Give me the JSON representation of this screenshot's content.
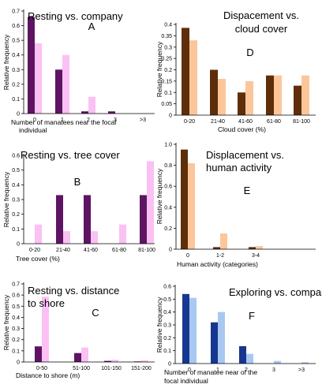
{
  "colors": {
    "purple_dark": "#5e1463",
    "purple_light": "#fbc0f4",
    "brown_dark": "#5e2e0a",
    "orange_light": "#fcc69a",
    "blue_dark": "#16378f",
    "blue_light": "#a8c8f2"
  },
  "chart_data": [
    {
      "type": "bar",
      "title": "Resting vs. company",
      "letter": "A",
      "xlabel": "Number of manatees near the focal individual",
      "ylabel": "Relative frequency",
      "categories": [
        "0",
        "1",
        "2",
        "3",
        ">3"
      ],
      "ylim": [
        0,
        0.7
      ],
      "yticks": [
        "0",
        "0.1",
        "0.2",
        "0.3",
        "0.4",
        "0.5",
        "0.6",
        "0.7"
      ],
      "series": [
        {
          "values": [
            0.66,
            0.3,
            0.015,
            0.015,
            0
          ]
        },
        {
          "values": [
            0.48,
            0.4,
            0.115,
            0,
            0
          ]
        }
      ]
    },
    {
      "type": "bar",
      "title": "Resting vs. tree cover",
      "letter": "B",
      "xlabel": "Tree cover (%)",
      "ylabel": "Relative frequency",
      "categories": [
        "0-20",
        "21-40",
        "41-60",
        "61-80",
        "81-100"
      ],
      "ylim": [
        0,
        0.6
      ],
      "yticks": [
        "0",
        "0.1",
        "0.2",
        "0.3",
        "0.4",
        "0.5",
        "0.6"
      ],
      "series": [
        {
          "values": [
            0,
            0.33,
            0.33,
            0,
            0.33
          ]
        },
        {
          "values": [
            0.13,
            0.085,
            0.085,
            0.13,
            0.56
          ]
        }
      ]
    },
    {
      "type": "bar",
      "title": "Resting vs. distance to shore",
      "letter": "C",
      "xlabel": "Distance to shore (m)",
      "ylabel": "Relative frequency",
      "categories": [
        "0-50",
        "51-100",
        "101-150",
        "151-200"
      ],
      "ylim": [
        0,
        0.7
      ],
      "yticks": [
        "0",
        "0.1",
        "0.2",
        "0.3",
        "0.4",
        "0.5",
        "0.6",
        "0.7"
      ],
      "series": [
        {
          "values": [
            0.14,
            0.08,
            0.01,
            0.005
          ]
        },
        {
          "values": [
            0.585,
            0.13,
            0.02,
            0.015
          ]
        }
      ]
    },
    {
      "type": "bar",
      "title": "Dispacement vs. cloud cover",
      "letter": "D",
      "xlabel": "Cloud cover (%)",
      "ylabel": "Relative frequency",
      "categories": [
        "0-20",
        "21-40",
        "41-60",
        "61-80",
        "81-100"
      ],
      "ylim": [
        0,
        0.4
      ],
      "yticks": [
        "0",
        "0.05",
        "0.1",
        "0.15",
        "0.2",
        "0.25",
        "0.3",
        "0.35",
        "0.4"
      ],
      "series": [
        {
          "values": [
            0.385,
            0.2,
            0.1,
            0.175,
            0.13
          ]
        },
        {
          "values": [
            0.33,
            0.16,
            0.15,
            0.175,
            0.175
          ]
        }
      ]
    },
    {
      "type": "bar",
      "title": "Displacement vs. human activity",
      "letter": "E",
      "xlabel": "Human activity (categories)",
      "ylabel": "Relative frequency",
      "categories": [
        "0",
        "1-2",
        "3-4"
      ],
      "ylim": [
        0,
        1.0
      ],
      "yticks": [
        "0",
        "0.2",
        "0.4",
        "0.6",
        "0.8",
        "1.0"
      ],
      "series": [
        {
          "values": [
            0.95,
            0.02,
            0.02
          ]
        },
        {
          "values": [
            0.82,
            0.15,
            0.03
          ]
        }
      ]
    },
    {
      "type": "bar",
      "title": "Exploring vs. company",
      "letter": "F",
      "xlabel": "Number of manatee near of the focal individual",
      "ylabel": "Relative frequency",
      "categories": [
        "0",
        "1",
        "2",
        "3",
        ">3"
      ],
      "ylim": [
        0,
        0.6
      ],
      "yticks": [
        "0",
        "0.1",
        "0.2",
        "0.3",
        "0.4",
        "0.5",
        "0.6"
      ],
      "series": [
        {
          "values": [
            0.54,
            0.32,
            0.135,
            0,
            0
          ]
        },
        {
          "values": [
            0.51,
            0.4,
            0.075,
            0.02,
            0.01
          ]
        }
      ]
    }
  ]
}
